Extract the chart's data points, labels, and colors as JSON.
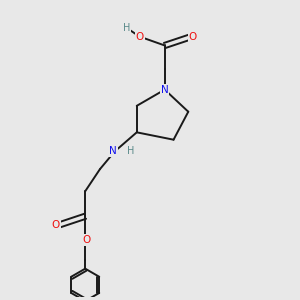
{
  "background_color": "#e8e8e8",
  "bond_color": "#1a1a1a",
  "N_color": "#1010ee",
  "O_color": "#ee1010",
  "H_color": "#5a8a8a",
  "fig_width": 3.0,
  "fig_height": 3.0,
  "dpi": 100,
  "xlim": [
    0,
    10
  ],
  "ylim": [
    0,
    10
  ]
}
